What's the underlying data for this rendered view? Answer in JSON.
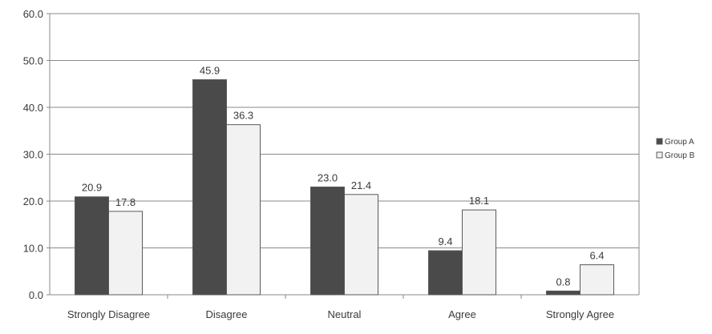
{
  "chart_data": {
    "type": "bar",
    "categories": [
      "Strongly Disagree",
      "Disagree",
      "Neutral",
      "Agree",
      "Strongly Agree"
    ],
    "series": [
      {
        "name": "Group A",
        "values": [
          20.9,
          45.9,
          23.0,
          9.4,
          0.8
        ],
        "labels": [
          "20.9",
          "45.9",
          "23.0",
          "9.4",
          "0.8"
        ],
        "color": "#4a4a4a"
      },
      {
        "name": "Group B",
        "values": [
          17.8,
          36.3,
          21.4,
          18.1,
          6.4
        ],
        "labels": [
          "17.8",
          "36.3",
          "21.4",
          "18.1",
          "6.4"
        ],
        "color": "#f2f2f2"
      }
    ],
    "ylim": [
      0,
      60
    ],
    "yticks": [
      "0.0",
      "10.0",
      "20.0",
      "30.0",
      "40.0",
      "50.0",
      "60.0"
    ],
    "grid": true,
    "legend_position": "right",
    "title": "",
    "xlabel": "",
    "ylabel": ""
  }
}
